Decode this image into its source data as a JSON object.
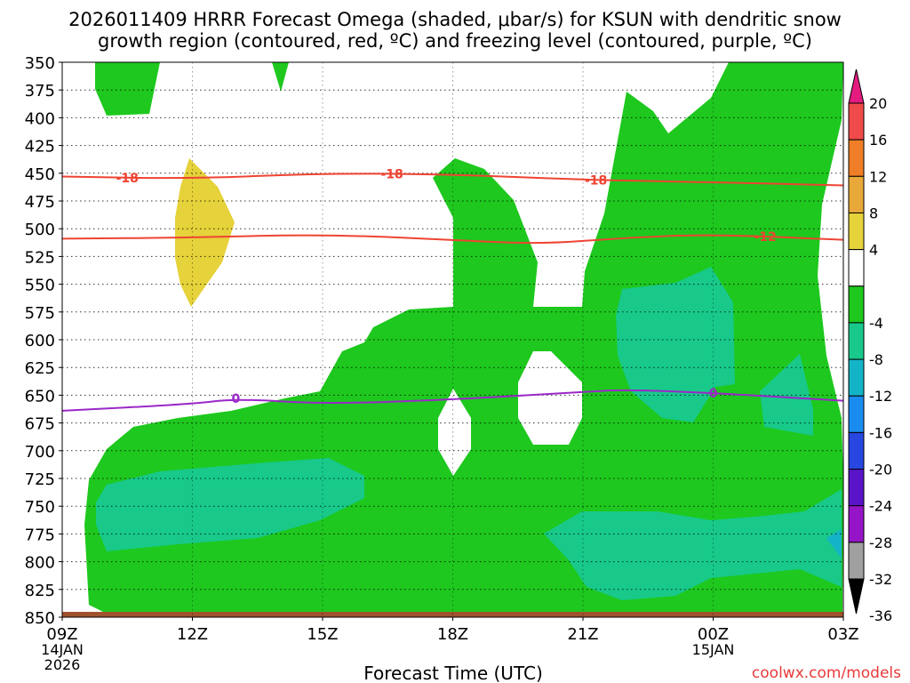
{
  "chart_data": {
    "type": "contour",
    "title_line1": "2026011409 HRRR Forecast Omega (shaded, μbar/s) for KSUN with dendritic snow",
    "title_line2": "growth region (contoured, red, ºC) and freezing level (contoured, purple, ºC)",
    "xlabel": "Forecast Time (UTC)",
    "credit": "coolwx.com/models",
    "x_range_hours": [
      0,
      30
    ],
    "x_ticks": [
      {
        "hour": 0,
        "label": "09Z",
        "sub1": "14JAN",
        "sub2": "2026"
      },
      {
        "hour": 3,
        "label": "12Z",
        "sub1": "",
        "sub2": ""
      },
      {
        "hour": 6,
        "label": "15Z",
        "sub1": "",
        "sub2": ""
      },
      {
        "hour": 9,
        "label": "18Z",
        "sub1": "",
        "sub2": ""
      },
      {
        "hour": 12,
        "label": "21Z",
        "sub1": "",
        "sub2": ""
      },
      {
        "hour": 15,
        "label": "00Z",
        "sub1": "15JAN",
        "sub2": ""
      },
      {
        "hour": 18,
        "label": "03Z",
        "sub1": "",
        "sub2": ""
      }
    ],
    "y_range_mb": [
      350,
      850
    ],
    "y_ticks": [
      "350",
      "375",
      "400",
      "425",
      "450",
      "475",
      "500",
      "525",
      "550",
      "575",
      "600",
      "625",
      "650",
      "675",
      "700",
      "725",
      "750",
      "775",
      "800",
      "825",
      "850"
    ],
    "colorbar": {
      "labels": [
        "20",
        "16",
        "12",
        "8",
        "4",
        "-4",
        "-8",
        "-12",
        "-16",
        "-20",
        "-24",
        "-28",
        "-32",
        "-36"
      ],
      "colors": [
        "#e41b7e",
        "#f04a4a",
        "#f07e28",
        "#e9a93a",
        "#e6d23a",
        "#ffffff",
        "#1ec81e",
        "#18c98a",
        "#14b4c8",
        "#1a8cf0",
        "#2846e0",
        "#5a14c8",
        "#9614c8",
        "#a0a0a0",
        "#000000"
      ]
    },
    "contours": {
      "dgz_upper": {
        "value_label": "-18",
        "color": "#ee4433",
        "points": [
          [
            0,
            453
          ],
          [
            3,
            455
          ],
          [
            6,
            450
          ],
          [
            9,
            451
          ],
          [
            12,
            456
          ],
          [
            15,
            458
          ],
          [
            18,
            461
          ]
        ]
      },
      "dgz_lower": {
        "value_label": "-12",
        "color": "#ee4433",
        "points": [
          [
            0,
            509
          ],
          [
            3,
            508
          ],
          [
            6,
            505
          ],
          [
            9,
            510
          ],
          [
            11,
            514
          ],
          [
            13,
            508
          ],
          [
            15,
            505
          ],
          [
            18,
            510
          ]
        ]
      },
      "freezing_level": {
        "value_label": "0",
        "color": "#9a28c8",
        "points": [
          [
            0,
            664
          ],
          [
            3,
            658
          ],
          [
            4,
            653
          ],
          [
            6,
            658
          ],
          [
            9,
            654
          ],
          [
            12,
            647
          ],
          [
            13,
            645
          ],
          [
            15,
            648
          ],
          [
            18,
            655
          ]
        ]
      }
    },
    "labels_on_contours": [
      {
        "text": "-18",
        "contour": "dgz_upper",
        "hour": 1.5
      },
      {
        "text": "-18",
        "contour": "dgz_upper",
        "hour": 7.6
      },
      {
        "text": "-18",
        "contour": "dgz_upper",
        "hour": 12.3
      },
      {
        "text": "-12",
        "contour": "dgz_lower",
        "hour": 16.2
      },
      {
        "text": "0",
        "contour": "freezing_level",
        "hour": 4.0
      },
      {
        "text": "0",
        "contour": "freezing_level",
        "hour": 15.0
      }
    ]
  }
}
